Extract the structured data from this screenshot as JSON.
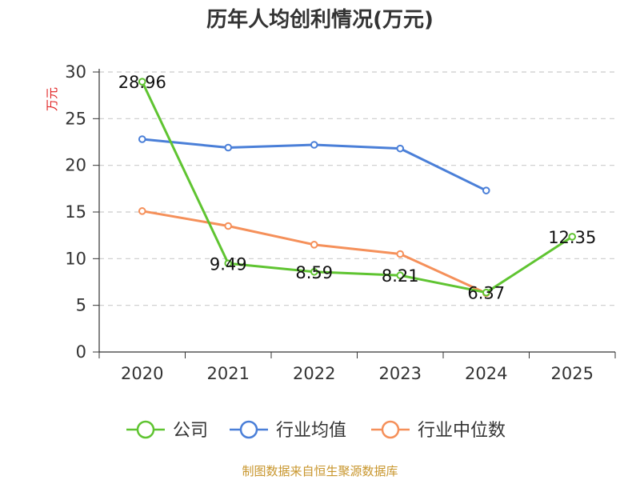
{
  "chart_data": {
    "type": "line",
    "title": "历年人均创利情况(万元)",
    "ylabel": "万元",
    "xlabel": "",
    "categories": [
      "2020",
      "2021",
      "2022",
      "2023",
      "2024",
      "2025"
    ],
    "ylim": [
      0,
      30
    ],
    "yticks": [
      0,
      5,
      10,
      15,
      20,
      25,
      30
    ],
    "grid": true,
    "legend_position": "bottom",
    "series": [
      {
        "name": "公司",
        "color": "#5fc431",
        "values": [
          28.96,
          9.49,
          8.59,
          8.21,
          6.37,
          12.35
        ],
        "labels": [
          "28.96",
          "9.49",
          "8.59",
          "8.21",
          "6.37",
          "12.35"
        ]
      },
      {
        "name": "行业均值",
        "color": "#4a7fd8",
        "values": [
          22.8,
          21.9,
          22.2,
          21.8,
          17.3,
          null
        ]
      },
      {
        "name": "行业中位数",
        "color": "#f5905a",
        "values": [
          15.1,
          13.5,
          11.5,
          10.5,
          6.3,
          null
        ]
      }
    ]
  },
  "source": "制图数据来自恒生聚源数据库"
}
